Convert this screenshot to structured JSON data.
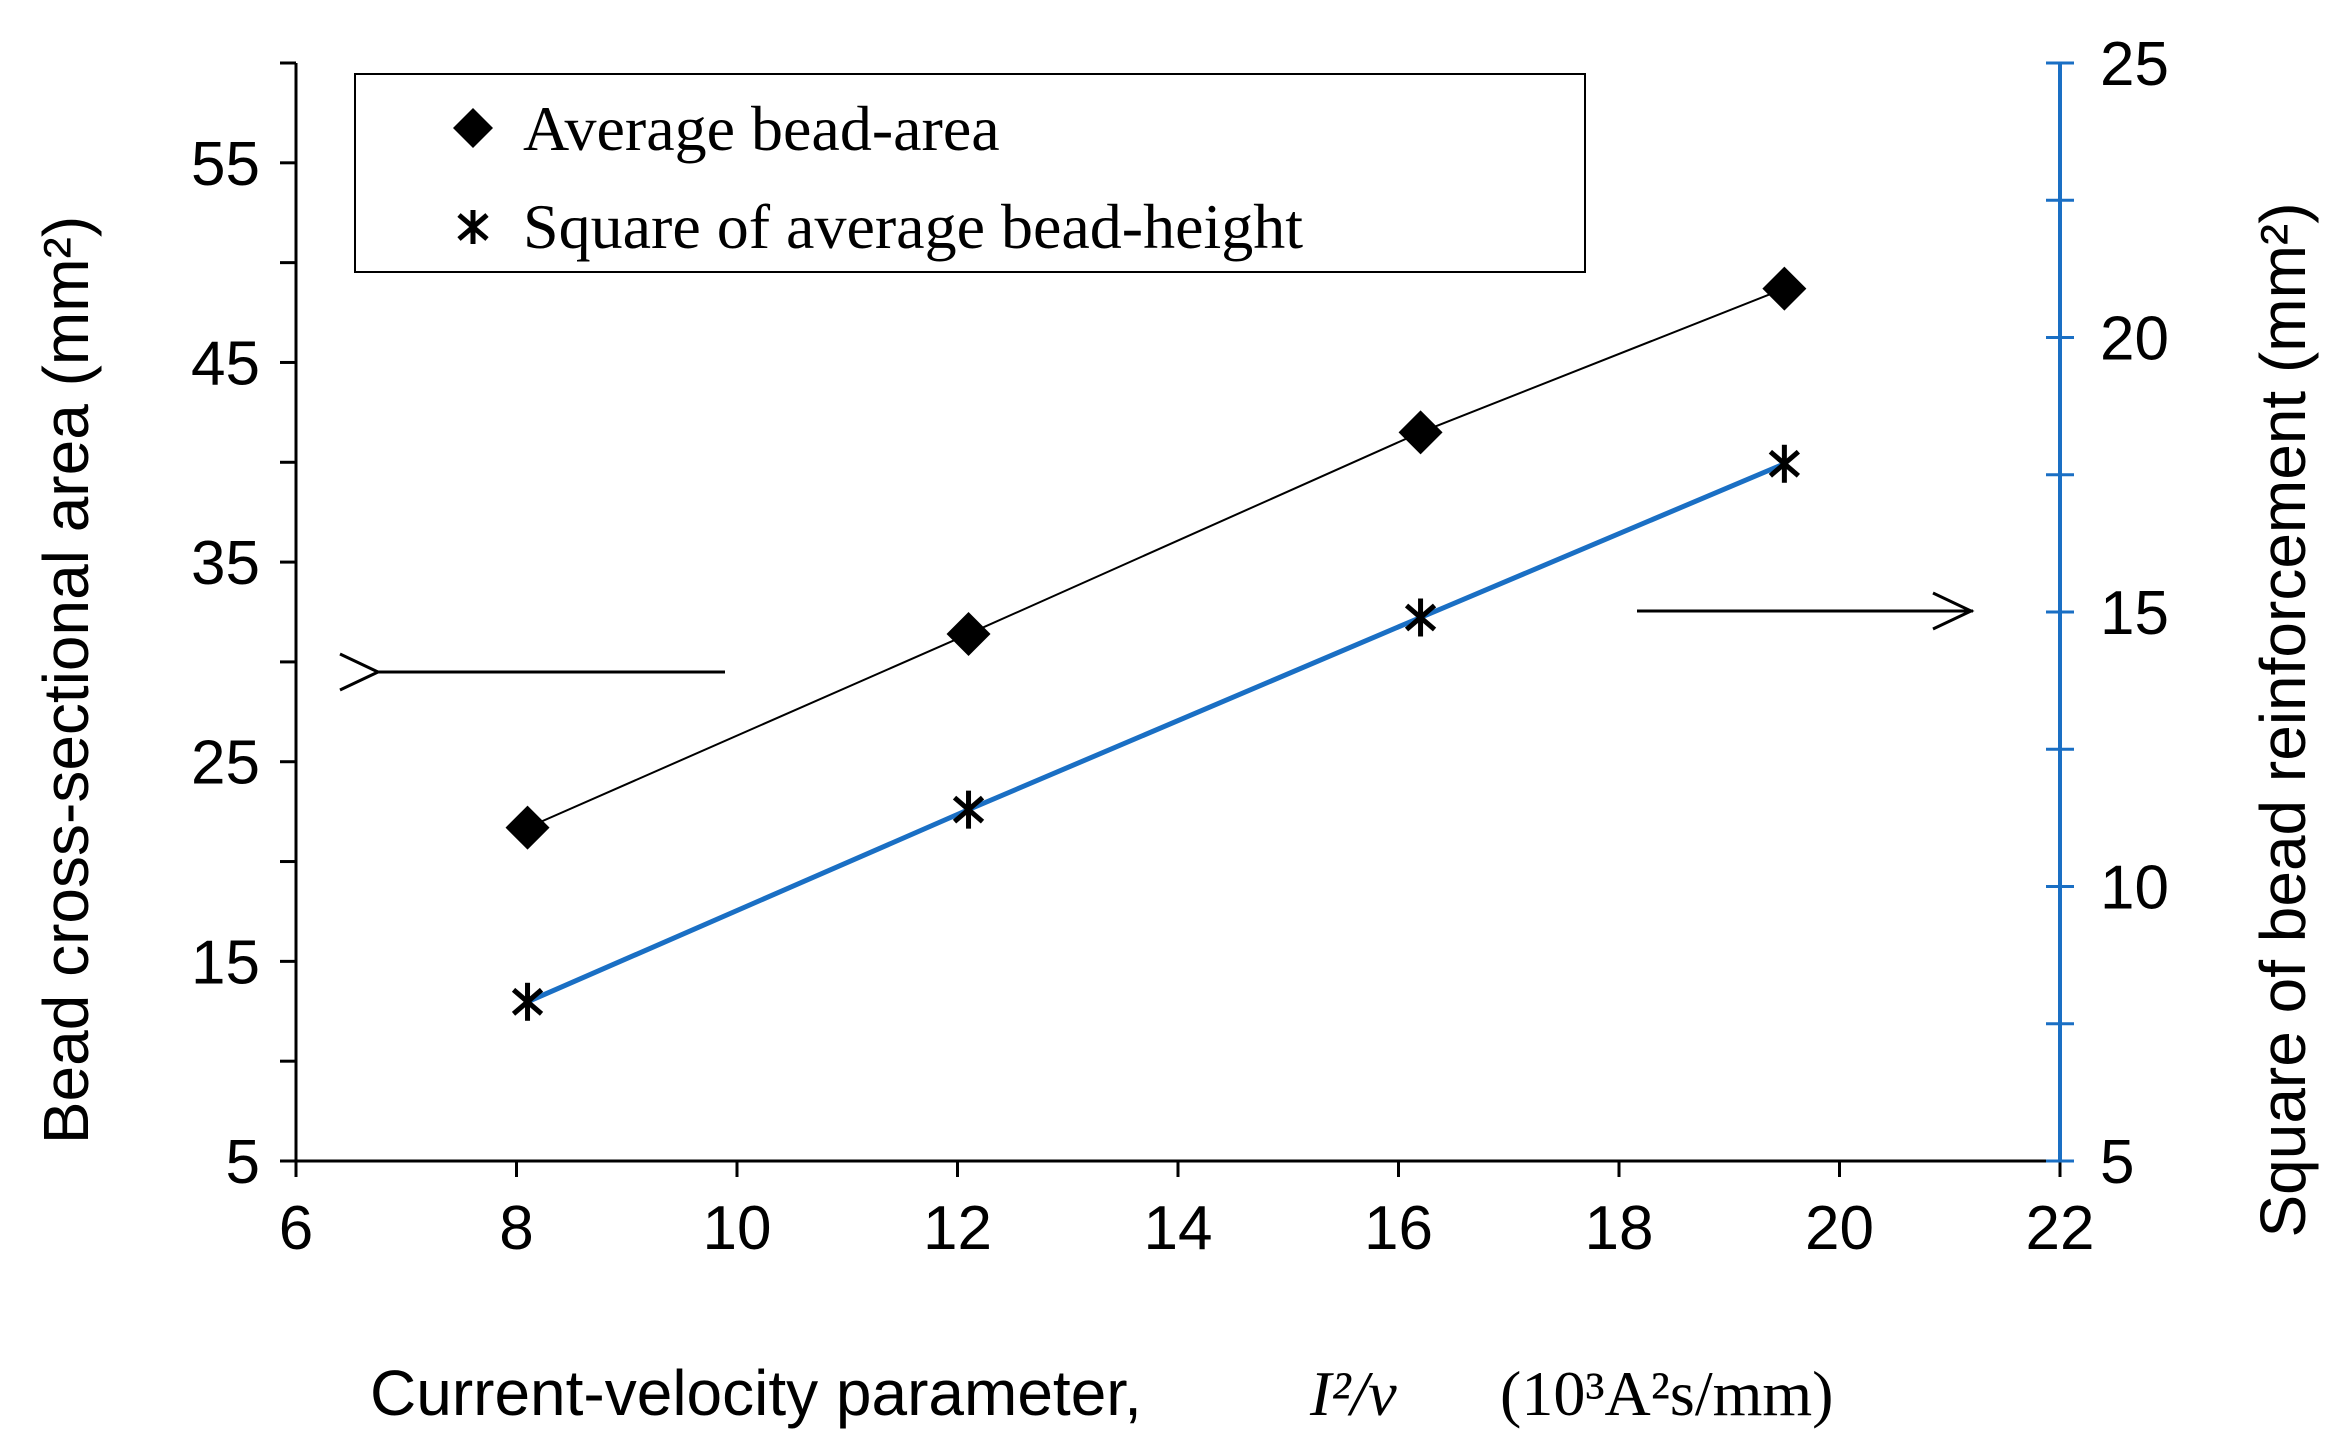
{
  "chart_data": {
    "type": "line",
    "title": "",
    "x": [
      8.1,
      12.1,
      16.2,
      19.5
    ],
    "xlim": [
      6,
      22
    ],
    "xticks": [
      "6",
      "8",
      "10",
      "12",
      "14",
      "16",
      "18",
      "20",
      "22"
    ],
    "xlabel": "Current-velocity parameter,",
    "xlabel_math": "I²/v",
    "xlabel_units": "(10³A²s/mm)",
    "ylabel_left": "Bead cross-sectional  area (mm²)",
    "ylim_left": [
      5,
      60
    ],
    "yticks_left": [
      "5",
      "15",
      "25",
      "35",
      "45",
      "55"
    ],
    "ylabel_right": "Square of bead reinforcement (mm²)",
    "ylim_right": [
      5,
      25
    ],
    "yticks_right": [
      "5",
      "10",
      "15",
      "20",
      "25"
    ],
    "series": [
      {
        "name": "Average bead-area",
        "axis": "left",
        "marker": "diamond",
        "line_color": "#000000",
        "values": [
          21.7,
          31.4,
          41.5,
          48.7
        ]
      },
      {
        "name": "Square of average bead-height",
        "axis": "right",
        "marker": "asterisk",
        "line_color": "#1a6fc4",
        "values": [
          7.9,
          11.4,
          14.9,
          17.7
        ]
      }
    ],
    "legend_position": "top-left",
    "annotations": [
      {
        "type": "arrow",
        "direction": "left",
        "meaning": "left axis"
      },
      {
        "type": "arrow",
        "direction": "right",
        "meaning": "right axis"
      }
    ]
  }
}
